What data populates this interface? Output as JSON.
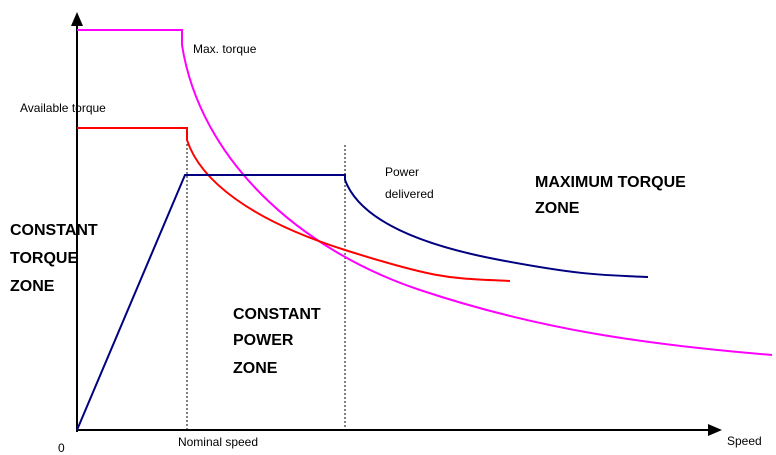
{
  "axes": {
    "origin": "0",
    "x_label": "Speed",
    "x_marker": "Nominal speed"
  },
  "curves": {
    "max_torque": "Max. torque",
    "available_torque": "Available torque",
    "power_delivered": [
      "Power",
      "delivered"
    ]
  },
  "zones": {
    "constant_torque": [
      "CONSTANT",
      "TORQUE",
      "ZONE"
    ],
    "constant_power": [
      "CONSTANT",
      "POWER",
      "ZONE"
    ],
    "maximum_torque": [
      "MAXIMUM TORQUE",
      "ZONE"
    ]
  }
}
